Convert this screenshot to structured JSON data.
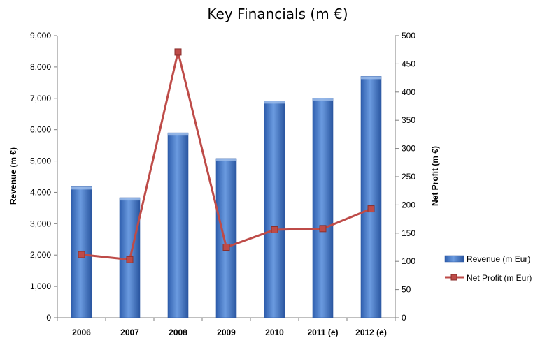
{
  "chart_data": {
    "type": "bar+line",
    "title": "Key Financials (m €)",
    "categories": [
      "2006",
      "2007",
      "2008",
      "2009",
      "2010",
      "2011 (e)",
      "2012 (e)"
    ],
    "y_left": {
      "label": "Revenue (m €)",
      "range": [
        0,
        9000
      ],
      "ticks": [
        "0",
        "1,000",
        "2,000",
        "3,000",
        "4,000",
        "5,000",
        "6,000",
        "7,000",
        "8,000",
        "9,000"
      ]
    },
    "y_right": {
      "label": "Net Profit (m €)",
      "range": [
        0,
        500
      ],
      "ticks": [
        "0",
        "50",
        "100",
        "150",
        "200",
        "250",
        "300",
        "350",
        "400",
        "450",
        "500"
      ]
    },
    "series": [
      {
        "name": "Revenue (m Eur)",
        "kind": "bar",
        "axis": "left",
        "color": "#4a7ed0",
        "values": [
          4180,
          3830,
          5900,
          5080,
          6920,
          7010,
          7700
        ]
      },
      {
        "name": "Net Profit (m Eur)",
        "kind": "line",
        "axis": "right",
        "color": "#be4b48",
        "values": [
          112,
          103,
          471,
          125,
          156,
          158,
          193
        ]
      }
    ],
    "grid": false,
    "legend_position": "right"
  }
}
